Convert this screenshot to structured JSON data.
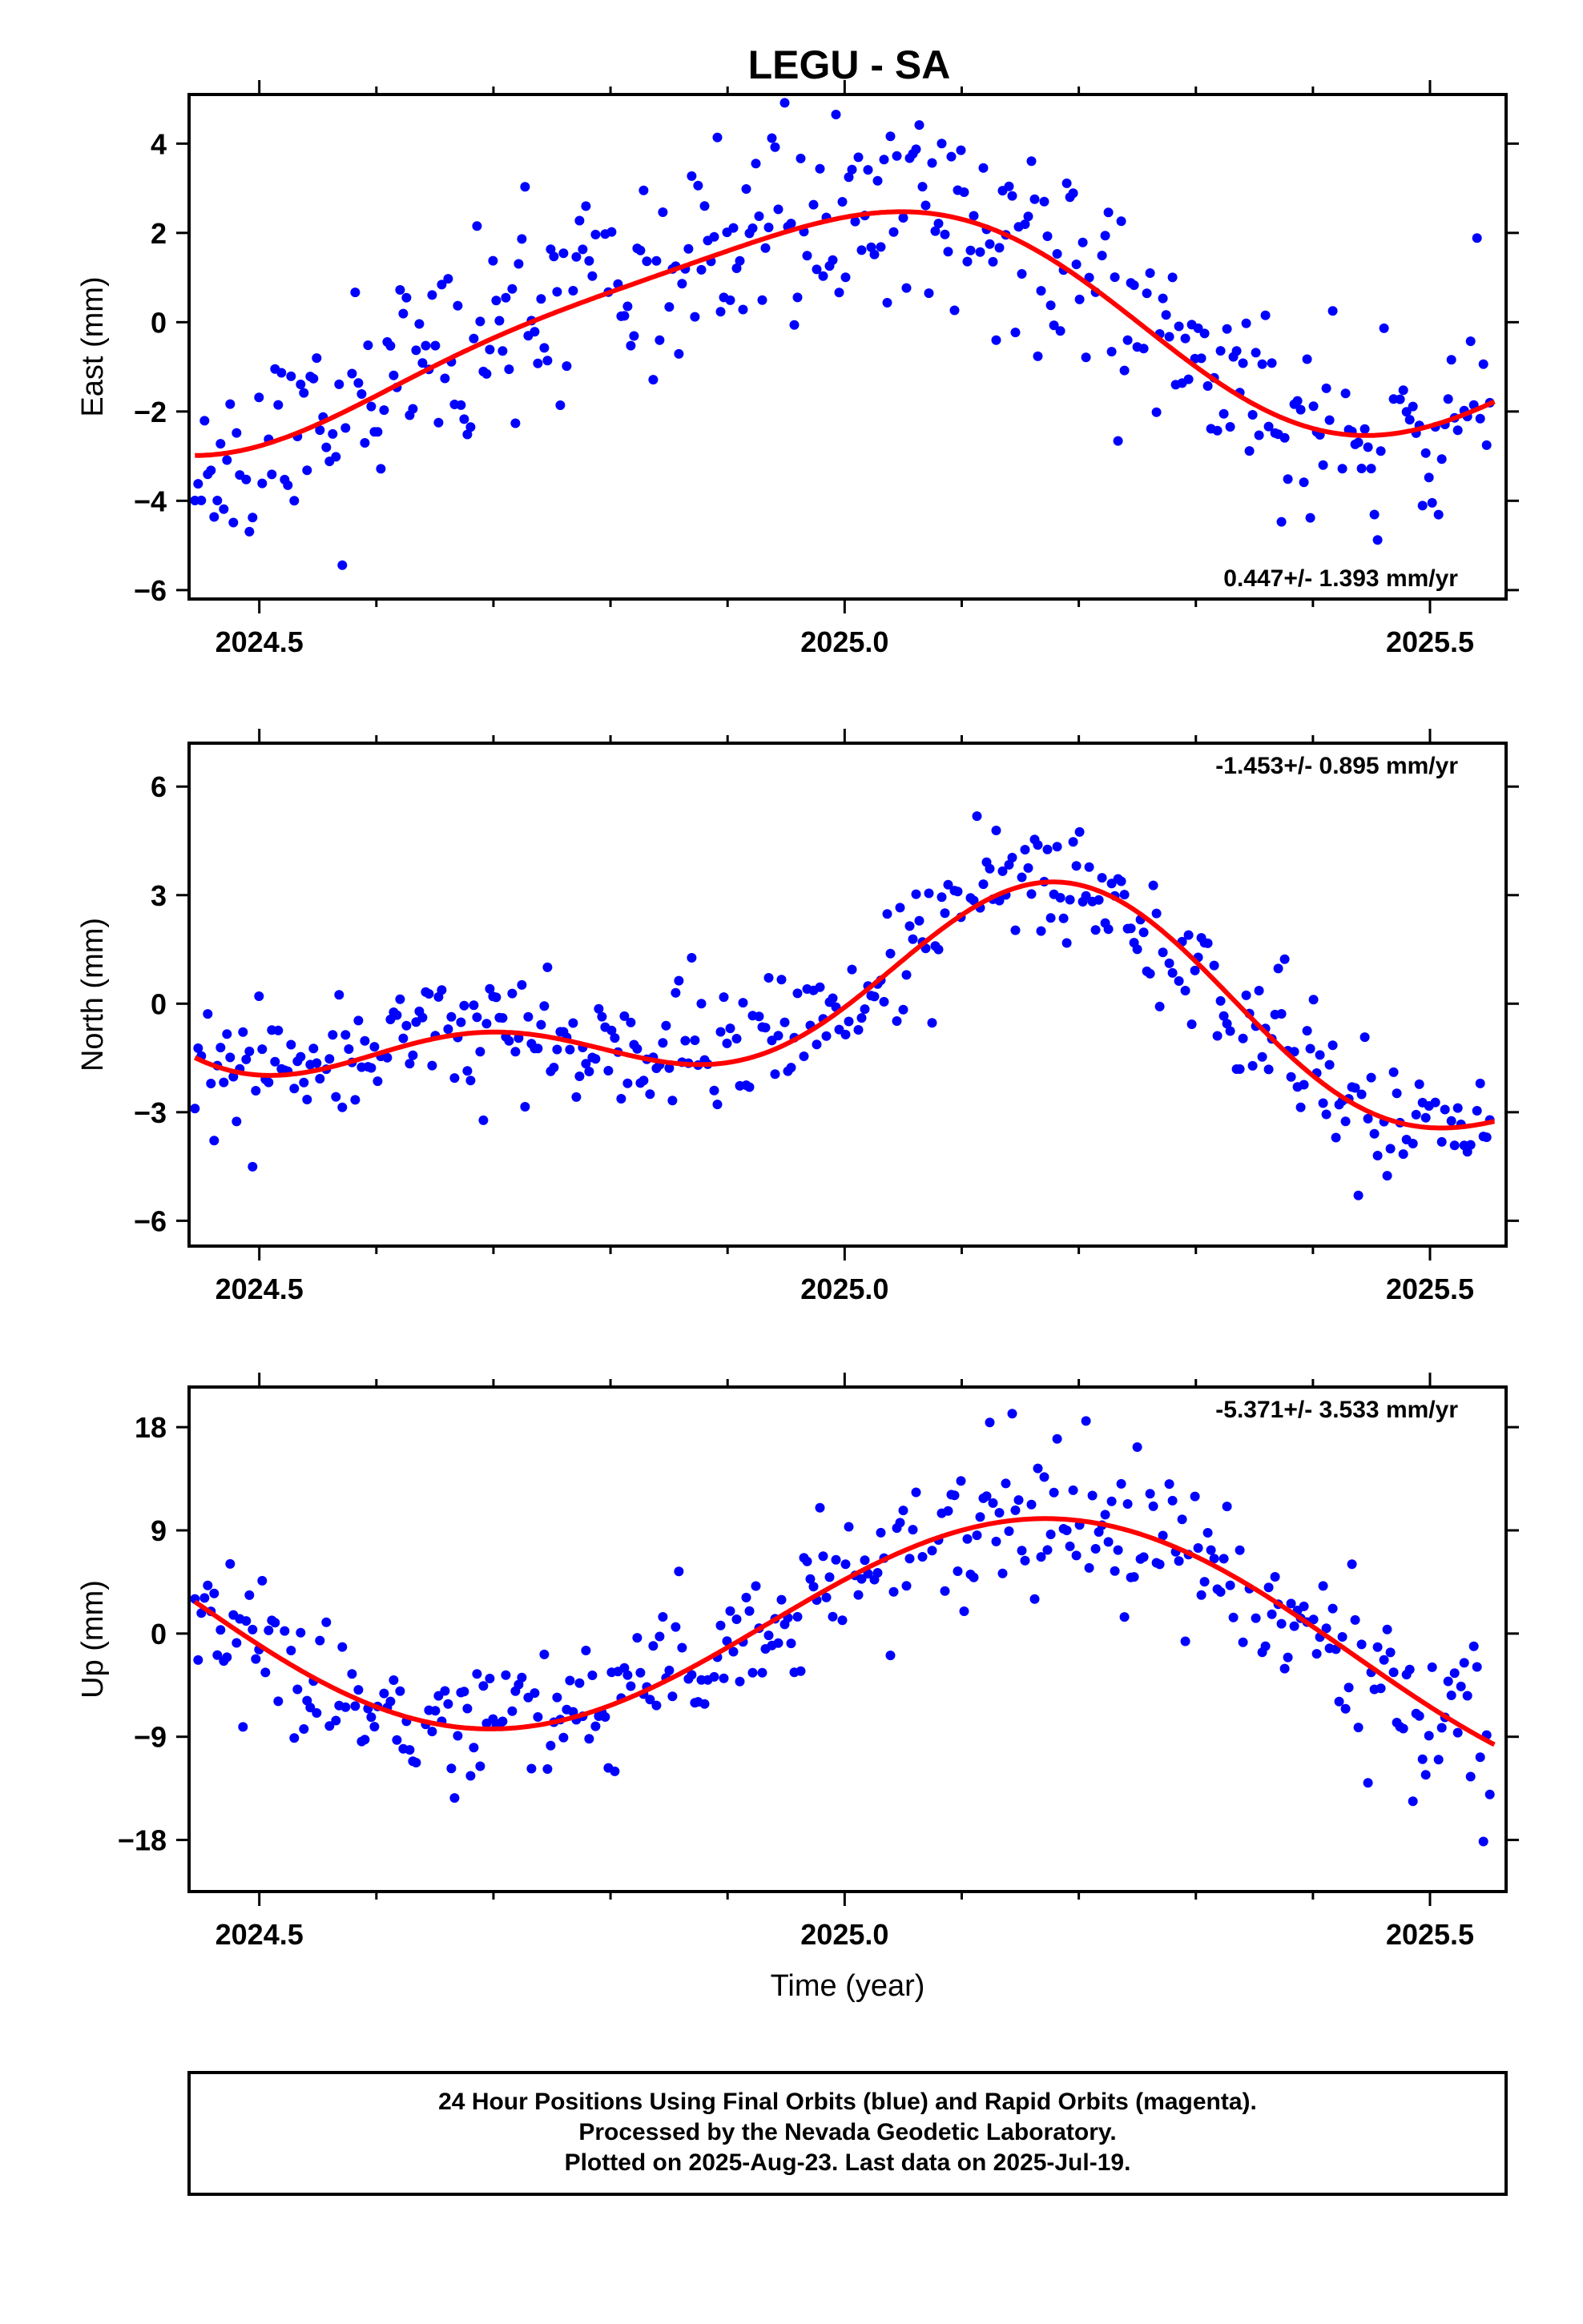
{
  "title": "LEGU - SA",
  "footer": {
    "line1": "24 Hour Positions Using Final Orbits (blue) and Rapid Orbits (magenta).",
    "line2": "Processed by the Nevada Geodetic Laboratory.",
    "line3": "Plotted on 2025-Aug-23. Last data on 2025-Jul-19."
  },
  "colors": {
    "points": "#0000ff",
    "fit": "#ff0000",
    "frame": "#000000"
  },
  "chart_data": [
    {
      "type": "scatter",
      "ylabel": "East (mm)",
      "xlabel": "",
      "xlim": [
        2024.44,
        2025.565
      ],
      "ylim": [
        -6.2,
        5.1
      ],
      "x_ticks": [
        2024.5,
        2025.0,
        2025.5
      ],
      "x_tick_labels": [
        "2024.5",
        "2025.0",
        "2025.5"
      ],
      "y_ticks": [
        -6,
        -4,
        -2,
        0,
        2,
        4
      ],
      "y_tick_labels": [
        "−6",
        "−4",
        "−2",
        "0",
        "2",
        "4"
      ],
      "rate_label": "0.447+/- 1.393 mm/yr",
      "rate_position": "bottom-right",
      "grid": false,
      "fit": {
        "a": 0,
        "b": 0.447,
        "c1": 2.45,
        "s1": -0.2,
        "c2": -0.1,
        "s2": 0.45,
        "t0": 2025.0
      },
      "noise": 1.15,
      "seed": 11
    },
    {
      "type": "scatter",
      "ylabel": "North (mm)",
      "xlabel": "",
      "xlim": [
        2024.44,
        2025.565
      ],
      "ylim": [
        -6.7,
        7.2
      ],
      "x_ticks": [
        2024.5,
        2025.0,
        2025.5
      ],
      "x_tick_labels": [
        "2024.5",
        "2025.0",
        "2025.5"
      ],
      "y_ticks": [
        -6,
        -3,
        0,
        3,
        6
      ],
      "y_tick_labels": [
        "−6",
        "−3",
        "0",
        "3",
        "6"
      ],
      "rate_label": "-1.453+/- 0.895 mm/yr",
      "rate_position": "top-right",
      "grid": false,
      "fit": {
        "a": -0.3,
        "b": -1.453,
        "c1": 1.3,
        "s1": 2.1,
        "c2": -1.1,
        "s2": 1.0,
        "t0": 2025.0
      },
      "noise": 0.9,
      "seed": 23
    },
    {
      "type": "scatter",
      "ylabel": "Up (mm)",
      "xlabel": "Time (year)",
      "xlim": [
        2024.44,
        2025.565
      ],
      "ylim": [
        -22.5,
        21.5
      ],
      "x_ticks": [
        2024.5,
        2025.0,
        2025.5
      ],
      "x_tick_labels": [
        "2024.5",
        "2025.0",
        "2025.5"
      ],
      "y_ticks": [
        -18,
        -9,
        0,
        9,
        18
      ],
      "y_tick_labels": [
        "−18",
        "−9",
        "0",
        "9",
        "18"
      ],
      "rate_label": "-5.371+/- 3.533 mm/yr",
      "rate_position": "top-right",
      "grid": false,
      "fit": {
        "a": 0.5,
        "b": -5.371,
        "c1": 4.2,
        "s1": 9.6,
        "c2": 0,
        "s2": 0,
        "t0": 2025.0
      },
      "noise": 3.2,
      "seed": 37
    }
  ]
}
